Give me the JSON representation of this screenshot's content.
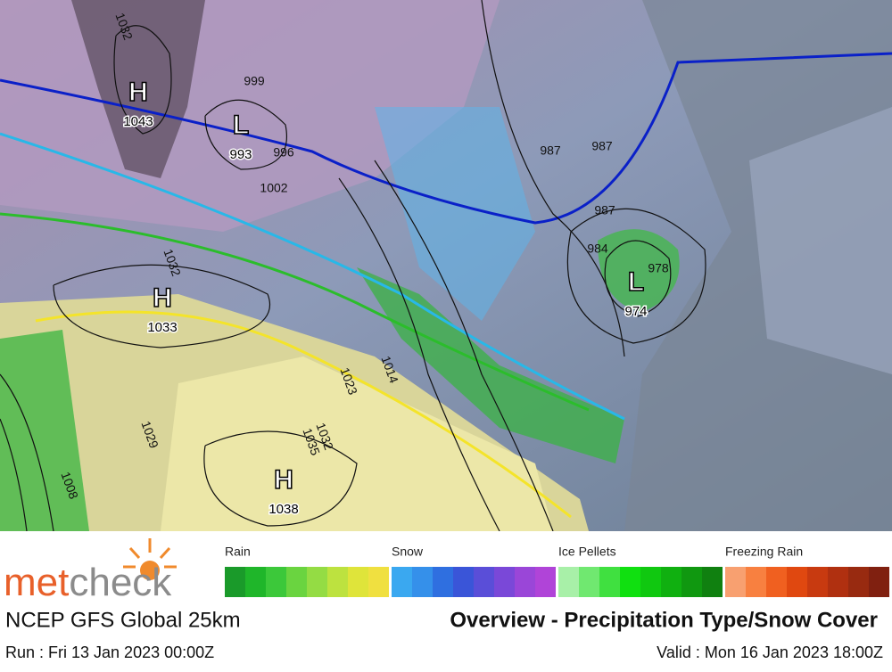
{
  "map": {
    "pressure_centers": [
      {
        "type": "H",
        "value": 1043
      },
      {
        "type": "L",
        "value": 993
      },
      {
        "type": "H",
        "value": 1033
      },
      {
        "type": "H",
        "value": 1038
      },
      {
        "type": "L",
        "value": 974
      }
    ],
    "isobar_labels": [
      999,
      996,
      1002,
      987,
      987,
      987,
      984,
      978,
      1032,
      1023,
      1014,
      1032,
      1035,
      1029,
      1008,
      1032
    ]
  },
  "legend": {
    "categories": [
      "Rain",
      "Snow",
      "Ice Pellets",
      "Freezing Rain"
    ]
  },
  "logo": {
    "part_a": "met",
    "part_b": "check"
  },
  "footer": {
    "model": "NCEP GFS Global 25km",
    "title": "Overview - Precipitation Type/Snow Cover",
    "run": "Run : Fri 13 Jan 2023 00:00Z",
    "valid": "Valid : Mon 16 Jan 2023 18:00Z"
  }
}
